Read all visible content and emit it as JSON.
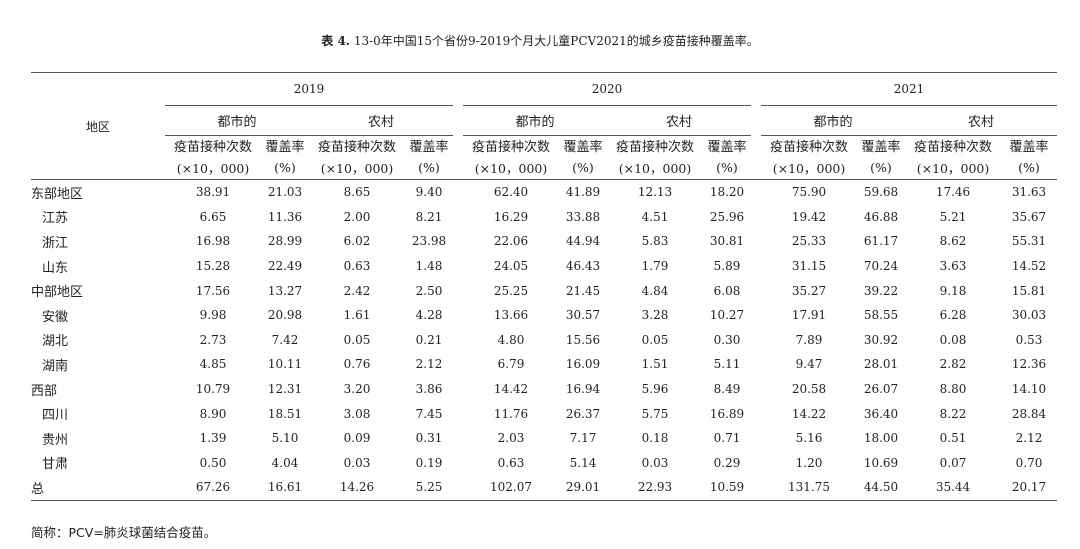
{
  "caption": {
    "label": "表 4.",
    "text": "13-0年中国15个省份9-2019个月大儿童PCV2021的城乡疫苗接种覆盖率。"
  },
  "header": {
    "region": "地区",
    "years": [
      "2019",
      "2020",
      "2021"
    ],
    "urban": "都市的",
    "rural": "农村",
    "count_label": "疫苗接种次数",
    "count_unit": "(×10，000)",
    "rate_label": "覆盖率",
    "rate_unit": "(%)"
  },
  "rows": [
    {
      "name": "东部地区",
      "sub": false,
      "values": [
        "38.91",
        "21.03",
        "8.65",
        "9.40",
        "62.40",
        "41.89",
        "12.13",
        "18.20",
        "75.90",
        "59.68",
        "17.46",
        "31.63"
      ]
    },
    {
      "name": "江苏",
      "sub": true,
      "values": [
        "6.65",
        "11.36",
        "2.00",
        "8.21",
        "16.29",
        "33.88",
        "4.51",
        "25.96",
        "19.42",
        "46.88",
        "5.21",
        "35.67"
      ]
    },
    {
      "name": "浙江",
      "sub": true,
      "values": [
        "16.98",
        "28.99",
        "6.02",
        "23.98",
        "22.06",
        "44.94",
        "5.83",
        "30.81",
        "25.33",
        "61.17",
        "8.62",
        "55.31"
      ]
    },
    {
      "name": "山东",
      "sub": true,
      "values": [
        "15.28",
        "22.49",
        "0.63",
        "1.48",
        "24.05",
        "46.43",
        "1.79",
        "5.89",
        "31.15",
        "70.24",
        "3.63",
        "14.52"
      ]
    },
    {
      "name": "中部地区",
      "sub": false,
      "values": [
        "17.56",
        "13.27",
        "2.42",
        "2.50",
        "25.25",
        "21.45",
        "4.84",
        "6.08",
        "35.27",
        "39.22",
        "9.18",
        "15.81"
      ]
    },
    {
      "name": "安徽",
      "sub": true,
      "values": [
        "9.98",
        "20.98",
        "1.61",
        "4.28",
        "13.66",
        "30.57",
        "3.28",
        "10.27",
        "17.91",
        "58.55",
        "6.28",
        "30.03"
      ]
    },
    {
      "name": "湖北",
      "sub": true,
      "values": [
        "2.73",
        "7.42",
        "0.05",
        "0.21",
        "4.80",
        "15.56",
        "0.05",
        "0.30",
        "7.89",
        "30.92",
        "0.08",
        "0.53"
      ]
    },
    {
      "name": "湖南",
      "sub": true,
      "values": [
        "4.85",
        "10.11",
        "0.76",
        "2.12",
        "6.79",
        "16.09",
        "1.51",
        "5.11",
        "9.47",
        "28.01",
        "2.82",
        "12.36"
      ]
    },
    {
      "name": "西部",
      "sub": false,
      "values": [
        "10.79",
        "12.31",
        "3.20",
        "3.86",
        "14.42",
        "16.94",
        "5.96",
        "8.49",
        "20.58",
        "26.07",
        "8.80",
        "14.10"
      ]
    },
    {
      "name": "四川",
      "sub": true,
      "values": [
        "8.90",
        "18.51",
        "3.08",
        "7.45",
        "11.76",
        "26.37",
        "5.75",
        "16.89",
        "14.22",
        "36.40",
        "8.22",
        "28.84"
      ]
    },
    {
      "name": "贵州",
      "sub": true,
      "values": [
        "1.39",
        "5.10",
        "0.09",
        "0.31",
        "2.03",
        "7.17",
        "0.18",
        "0.71",
        "5.16",
        "18.00",
        "0.51",
        "2.12"
      ]
    },
    {
      "name": "甘肃",
      "sub": true,
      "values": [
        "0.50",
        "4.04",
        "0.03",
        "0.19",
        "0.63",
        "5.14",
        "0.03",
        "0.29",
        "1.20",
        "10.69",
        "0.07",
        "0.70"
      ]
    },
    {
      "name": "总",
      "sub": false,
      "values": [
        "67.26",
        "16.61",
        "14.26",
        "5.25",
        "102.07",
        "29.01",
        "22.93",
        "10.59",
        "131.75",
        "44.50",
        "35.44",
        "20.17"
      ]
    }
  ],
  "footnote": "简称：PCV=肺炎球菌结合疫苗。"
}
